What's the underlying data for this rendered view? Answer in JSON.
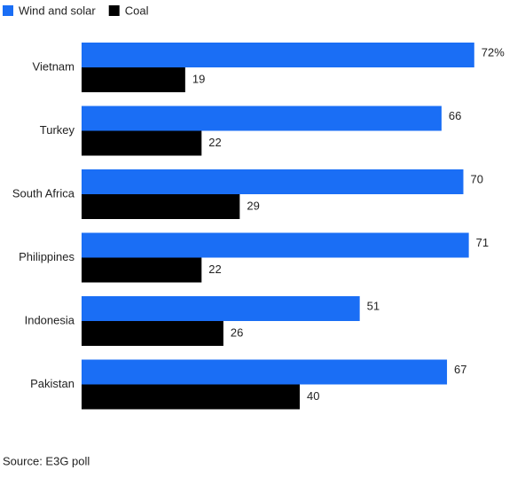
{
  "chart_data": {
    "type": "bar",
    "orientation": "horizontal",
    "categories": [
      "Vietnam",
      "Turkey",
      "South Africa",
      "Philippines",
      "Indonesia",
      "Pakistan"
    ],
    "series": [
      {
        "name": "Wind and solar",
        "color": "#1a6ef5",
        "values": [
          72,
          66,
          70,
          71,
          51,
          67
        ],
        "value_labels": [
          "72%",
          "66",
          "70",
          "71",
          "51",
          "67"
        ]
      },
      {
        "name": "Coal",
        "color": "#000000",
        "values": [
          19,
          22,
          29,
          22,
          26,
          40
        ]
      }
    ],
    "source": "Source: E3G poll"
  }
}
